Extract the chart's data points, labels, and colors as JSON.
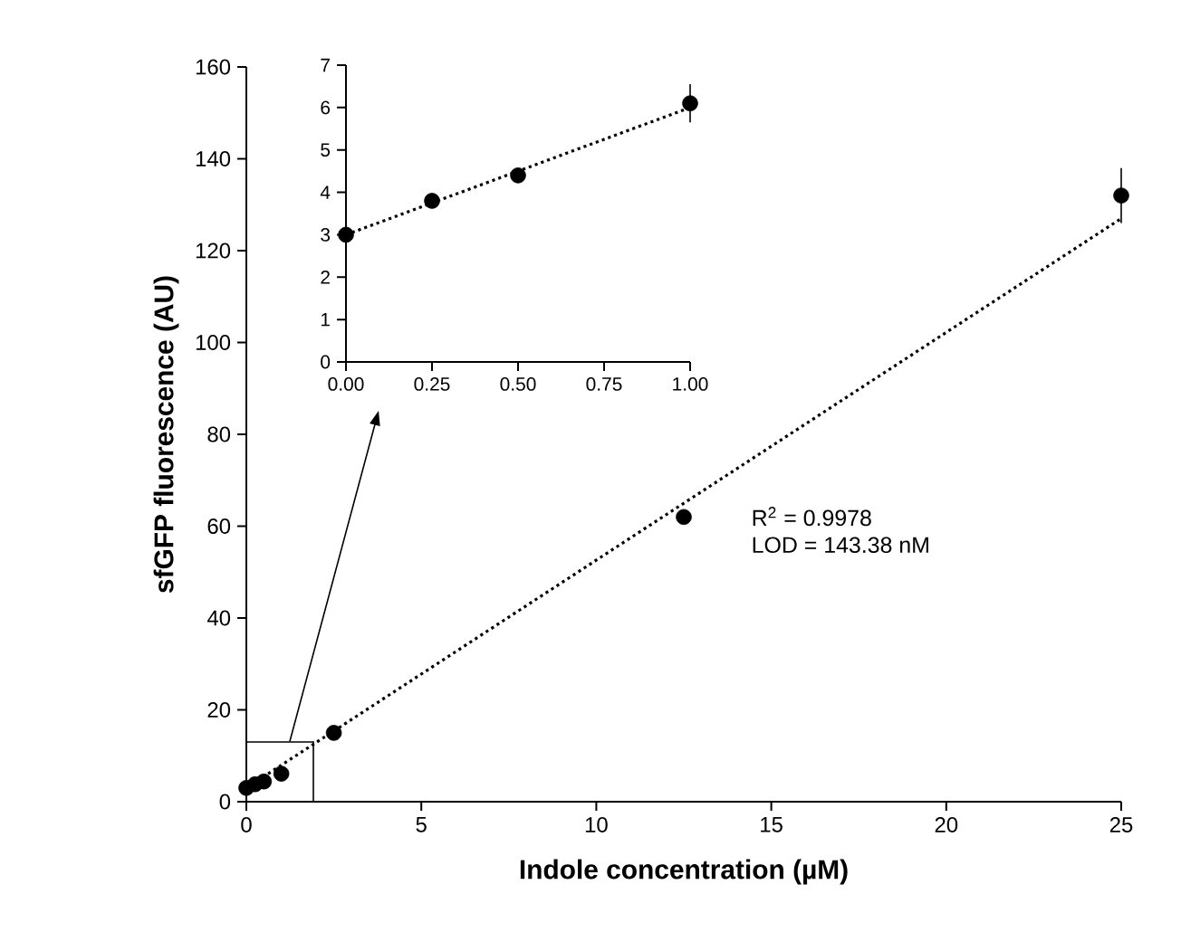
{
  "chart_data": [
    {
      "type": "scatter",
      "xlabel": "Indole concentration (µM)",
      "ylabel": "sfGFP fluorescence (AU)",
      "xlim": [
        0,
        25
      ],
      "xticks": [
        0,
        5,
        10,
        15,
        20,
        25
      ],
      "ylim": [
        0,
        160
      ],
      "yticks": [
        0,
        20,
        40,
        60,
        80,
        100,
        120,
        140,
        160
      ],
      "series": [
        {
          "color": "#000000",
          "marker": "circle",
          "x": [
            0,
            0.25,
            0.5,
            1,
            2.5,
            12.5,
            25
          ],
          "values": [
            3,
            3.8,
            4.4,
            6.1,
            15,
            62,
            132
          ],
          "errors": [
            null,
            null,
            null,
            null,
            null,
            null,
            6
          ]
        },
        {
          "type": "line",
          "color": "#000000",
          "marker": "none",
          "line_style": "dotted",
          "x": [
            0,
            25
          ],
          "values": [
            3,
            127
          ]
        }
      ],
      "annotations": [
        "R$^{2}$ = 0.9978",
        "LOD = 143.38 nM"
      ]
    },
    {
      "type": "scatter",
      "xlim": [
        0,
        1
      ],
      "xticks": [
        {
          "value": 0,
          "label": "0.00"
        },
        {
          "value": 0.25,
          "label": "0.25"
        },
        {
          "value": 0.5,
          "label": "0.50"
        },
        {
          "value": 0.75,
          "label": "0.75"
        },
        {
          "value": 1,
          "label": "1.00"
        }
      ],
      "ylim": [
        0,
        7
      ],
      "yticks": [
        0,
        1,
        2,
        3,
        4,
        5,
        6,
        7
      ],
      "series": [
        {
          "color": "#000000",
          "marker": "circle",
          "x": [
            0,
            0.25,
            0.5,
            1
          ],
          "values": [
            3,
            3.8,
            4.4,
            6.1
          ],
          "errors": [
            null,
            0.15,
            0.15,
            0.45
          ]
        },
        {
          "type": "line",
          "color": "#000000",
          "marker": "none",
          "line_style": "dotted",
          "x": [
            0,
            1
          ],
          "values": [
            3,
            6
          ]
        }
      ]
    }
  ]
}
